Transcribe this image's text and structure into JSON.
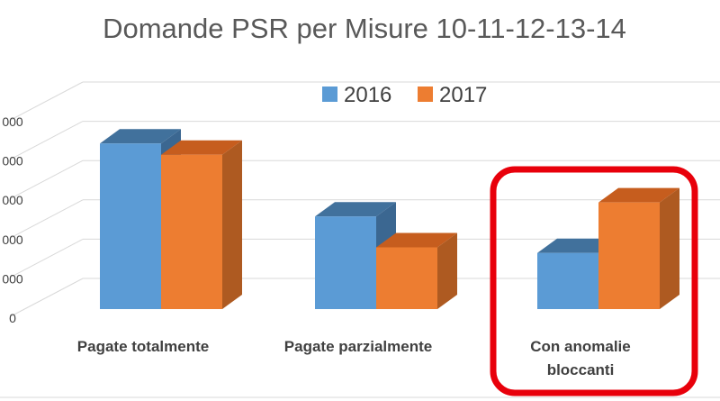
{
  "chart_data": {
    "type": "bar",
    "title": "Domande PSR per Misure 10-11-12-13-14",
    "categories": [
      "Pagate totalmente",
      "Pagate parzialmente",
      "Con anomalie bloccanti"
    ],
    "series": [
      {
        "name": "2016",
        "values": [
          5.9,
          3.3,
          2.0
        ]
      },
      {
        "name": "2017",
        "values": [
          5.5,
          2.2,
          3.8
        ]
      }
    ],
    "ylim": [
      0,
      7
    ],
    "yticks_visible": [
      "0",
      "000",
      "000",
      "000",
      "000",
      "000"
    ],
    "grid": true,
    "legend_position": "top",
    "colors": {
      "2016": "#5b9bd5",
      "2016_top": "#41719c",
      "2016_side": "#3b6791",
      "2017": "#ed7d31",
      "2017_top": "#c65d1e",
      "2017_side": "#ae5a21",
      "highlight": "#e8000b",
      "grid": "#d9d9d9",
      "text": "#404040"
    },
    "highlighted_category": "Con anomalie bloccanti"
  }
}
